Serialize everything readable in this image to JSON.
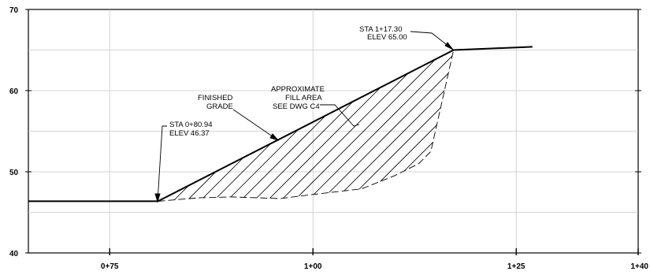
{
  "chart_data": {
    "type": "line",
    "y_ticks": [
      "70",
      "60",
      "50",
      "40"
    ],
    "y_values": [
      70,
      60,
      50,
      40
    ],
    "x_ticks": [
      "0+75",
      "1+00",
      "1+25",
      "1+40"
    ],
    "x_values": [
      75,
      100,
      125,
      140
    ],
    "xlim": [
      65,
      140
    ],
    "ylim": [
      40,
      70
    ],
    "finished_grade": {
      "x": [
        65,
        80.94,
        117.3,
        127
      ],
      "y": [
        46.37,
        46.37,
        65.0,
        65.4
      ]
    },
    "existing_ground": {
      "x": [
        80.94,
        86,
        90,
        96,
        100,
        106,
        110,
        113,
        114.5,
        115.5,
        117.3
      ],
      "y": [
        46.37,
        46.8,
        46.9,
        46.7,
        47.2,
        47.9,
        49.5,
        51.0,
        52.5,
        57.0,
        65.0
      ]
    },
    "annotations": {
      "top_point": [
        "STA 1+17.30",
        "ELEV 65.00"
      ],
      "start_point": [
        "STA 0+80.94",
        "ELEV 46.37"
      ],
      "finished_grade": [
        "FINISHED",
        "GRADE"
      ],
      "fill_area": [
        "APPROXIMATE",
        "FILL AREA",
        "SEE DWG C4"
      ]
    }
  }
}
